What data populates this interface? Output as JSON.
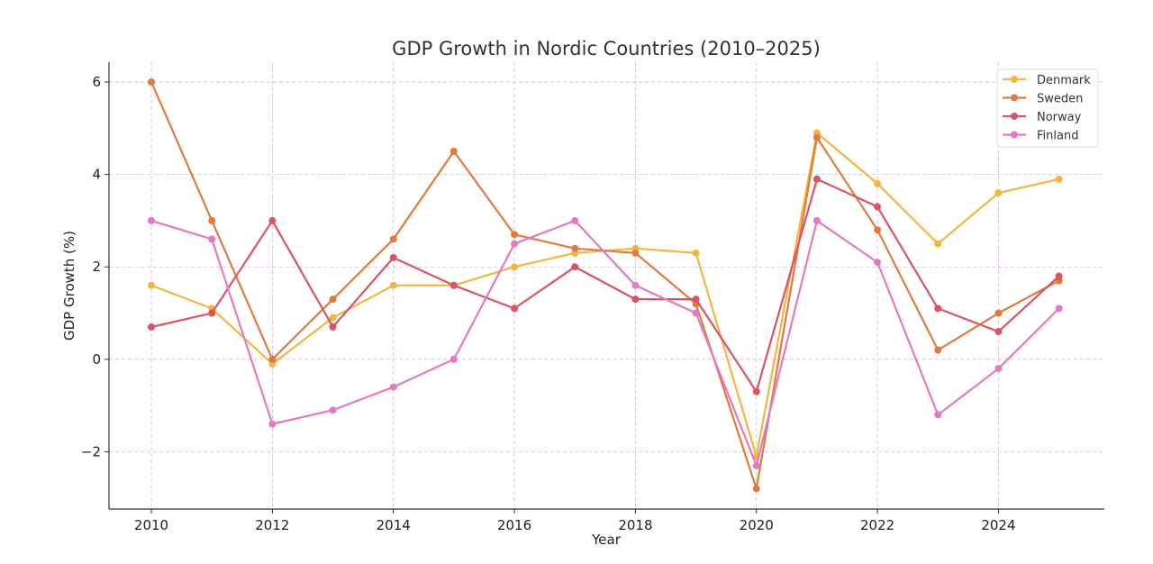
{
  "chart_data": {
    "type": "line",
    "title": "GDP Growth in Nordic Countries (2010–2025)",
    "xlabel": "Year",
    "ylabel": "GDP Growth (%)",
    "x": [
      2010,
      2011,
      2012,
      2013,
      2014,
      2015,
      2016,
      2017,
      2018,
      2019,
      2020,
      2021,
      2022,
      2023,
      2024,
      2025
    ],
    "xlim": [
      2009.3,
      2025.75
    ],
    "ylim": [
      -3.24,
      6.43
    ],
    "xticks": [
      2010,
      2012,
      2014,
      2016,
      2018,
      2020,
      2022,
      2024
    ],
    "yticks": [
      -2,
      0,
      2,
      4,
      6
    ],
    "ytick_labels": [
      "−2",
      "0",
      "2",
      "4",
      "6"
    ],
    "grid": true,
    "legend_position": "top-right",
    "series": [
      {
        "name": "Denmark",
        "color": "#f4b642",
        "values": [
          1.6,
          1.1,
          -0.1,
          0.9,
          1.6,
          1.6,
          2.0,
          2.3,
          2.4,
          2.3,
          -2.1,
          4.9,
          3.8,
          2.5,
          3.6,
          3.9
        ]
      },
      {
        "name": "Sweden",
        "color": "#e07b40",
        "values": [
          6.0,
          3.0,
          0.0,
          1.3,
          2.6,
          4.5,
          2.7,
          2.4,
          2.3,
          1.2,
          -2.8,
          4.8,
          2.8,
          0.2,
          1.0,
          1.7
        ]
      },
      {
        "name": "Norway",
        "color": "#d95566",
        "values": [
          0.7,
          1.0,
          3.0,
          0.7,
          2.2,
          1.6,
          1.1,
          2.0,
          1.3,
          1.3,
          -0.7,
          3.9,
          3.3,
          1.1,
          0.6,
          1.8
        ]
      },
      {
        "name": "Finland",
        "color": "#e27bbf",
        "values": [
          3.0,
          2.6,
          -1.4,
          -1.1,
          -0.6,
          0.0,
          2.5,
          3.0,
          1.6,
          1.0,
          -2.3,
          3.0,
          2.1,
          -1.2,
          -0.2,
          1.1
        ]
      }
    ]
  }
}
